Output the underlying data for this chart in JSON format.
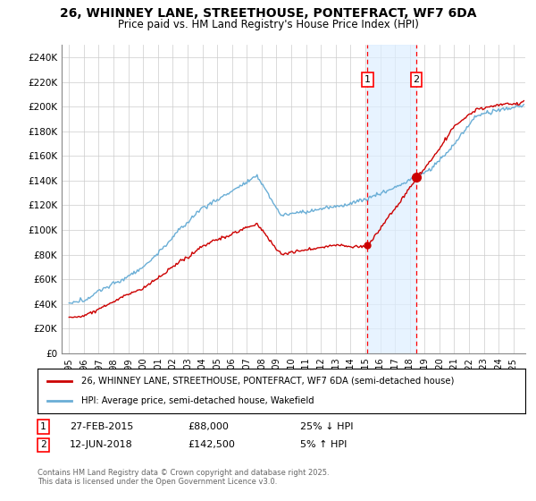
{
  "title": "26, WHINNEY LANE, STREETHOUSE, PONTEFRACT, WF7 6DA",
  "subtitle": "Price paid vs. HM Land Registry's House Price Index (HPI)",
  "ylabel_ticks": [
    "£0",
    "£20K",
    "£40K",
    "£60K",
    "£80K",
    "£100K",
    "£120K",
    "£140K",
    "£160K",
    "£180K",
    "£200K",
    "£220K",
    "£240K"
  ],
  "ytick_values": [
    0,
    20000,
    40000,
    60000,
    80000,
    100000,
    120000,
    140000,
    160000,
    180000,
    200000,
    220000,
    240000
  ],
  "ylim": [
    0,
    250000
  ],
  "xlim_start": 1994.5,
  "xlim_end": 2025.8,
  "hpi_color": "#6aaed6",
  "price_color": "#cc0000",
  "sale1_date": 2015.15,
  "sale1_price": 88000,
  "sale2_date": 2018.45,
  "sale2_price": 142500,
  "legend_price_label": "26, WHINNEY LANE, STREETHOUSE, PONTEFRACT, WF7 6DA (semi-detached house)",
  "legend_hpi_label": "HPI: Average price, semi-detached house, Wakefield",
  "annotation1_date": "27-FEB-2015",
  "annotation1_price": "£88,000",
  "annotation1_pct": "25% ↓ HPI",
  "annotation2_date": "12-JUN-2018",
  "annotation2_price": "£142,500",
  "annotation2_pct": "5% ↑ HPI",
  "footer": "Contains HM Land Registry data © Crown copyright and database right 2025.\nThis data is licensed under the Open Government Licence v3.0.",
  "background_color": "#ffffff",
  "grid_color": "#cccccc"
}
